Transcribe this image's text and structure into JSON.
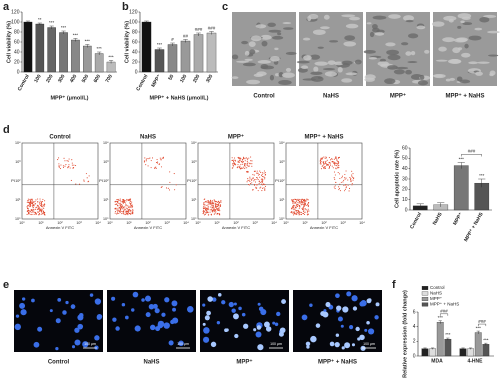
{
  "panel_labels": [
    "a",
    "b",
    "c",
    "d",
    "e",
    "f"
  ],
  "captions": [
    "Control",
    "NaHS",
    "MPP⁺",
    "MPP⁺ + NaHS"
  ],
  "scale_bar": "100 μm",
  "flow_cytometry": {
    "x_label": "Annexin V FITC",
    "y_label": "PI",
    "ticks": [
      "10⁰",
      "10¹",
      "10²",
      "10³",
      "10⁴"
    ]
  },
  "chart_data": [
    {
      "type": "bar",
      "y_label": "Cell viability (%)",
      "x_label": "MPP⁺ (μmol/L)",
      "categories": [
        "Control",
        "100",
        "200",
        "300",
        "400",
        "500",
        "600",
        "700"
      ],
      "values": [
        100,
        96,
        89,
        79,
        64,
        52,
        37,
        20
      ],
      "errors": [
        2,
        2,
        3,
        3,
        3,
        3,
        3,
        3
      ],
      "annotations": [
        null,
        "**",
        "***",
        "***",
        "***",
        "***",
        "***",
        "***"
      ],
      "colors": [
        "#111111",
        "#555555",
        "#666666",
        "#777777",
        "#888888",
        "#999999",
        "#aaaaaa",
        "#bbbbbb"
      ],
      "ylim": [
        0,
        120
      ],
      "yticks": [
        0,
        20,
        40,
        60,
        80,
        100,
        120
      ]
    },
    {
      "type": "bar",
      "y_label": "Cell viability (%)",
      "x_label": "MPP⁺ + NaHS (μmol/L)",
      "categories": [
        "Control",
        "MPP⁺",
        "50",
        "100",
        "200",
        "300"
      ],
      "values": [
        100,
        45,
        55,
        62,
        75,
        78
      ],
      "errors": [
        2,
        3,
        3,
        3,
        3,
        3
      ],
      "annotations": [
        null,
        "***",
        "#",
        "##",
        "###",
        "###"
      ],
      "colors": [
        "#111111",
        "#555555",
        "#888888",
        "#999999",
        "#aaaaaa",
        "#bbbbbb"
      ],
      "ylim": [
        0,
        120
      ],
      "yticks": [
        0,
        20,
        40,
        60,
        80,
        100,
        120
      ]
    },
    {
      "type": "bar",
      "y_label": "Cell apoptotic rate (%)",
      "categories": [
        "Control",
        "NaHS",
        "MPP⁺",
        "MPP⁺ + NaHS"
      ],
      "values": [
        4,
        5,
        43,
        26
      ],
      "errors": [
        2,
        2,
        3,
        4
      ],
      "annotations": [
        null,
        null,
        "***",
        "***"
      ],
      "bracket_label": "###",
      "colors": [
        "#222222",
        "#bbbbbb",
        "#777777",
        "#555555"
      ],
      "ylim": [
        0,
        60
      ],
      "yticks": [
        0,
        10,
        20,
        30,
        40,
        50,
        60
      ]
    },
    {
      "type": "grouped_bar",
      "y_label": "Relative expression (fold change)",
      "categories": [
        "MDA",
        "4-HNE"
      ],
      "bracket_labels": [
        "###",
        "###"
      ],
      "series": [
        {
          "name": "Control",
          "color": "#222222",
          "values": [
            1,
            1
          ],
          "errors": [
            0.1,
            0.1
          ],
          "annotations": [
            null,
            null
          ]
        },
        {
          "name": "NaHS",
          "color": "#dddddd",
          "values": [
            1,
            1
          ],
          "errors": [
            0.1,
            0.1
          ],
          "annotations": [
            null,
            null
          ]
        },
        {
          "name": "MPP⁺",
          "color": "#999999",
          "values": [
            4.6,
            3.2
          ],
          "errors": [
            0.2,
            0.2
          ],
          "annotations": [
            "***",
            "***"
          ]
        },
        {
          "name": "MPP⁺ + NaHS",
          "color": "#555555",
          "values": [
            2.3,
            1.6
          ],
          "errors": [
            0.15,
            0.15
          ],
          "annotations": [
            "***",
            "***"
          ]
        }
      ],
      "ylim": [
        0,
        6
      ],
      "yticks": [
        0,
        2,
        4,
        6
      ]
    }
  ]
}
